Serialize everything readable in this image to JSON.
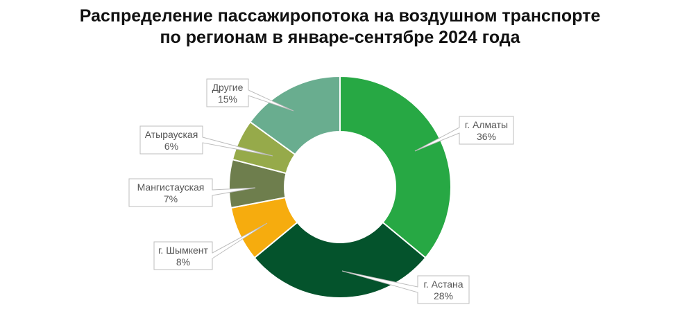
{
  "chart_data": {
    "type": "pie",
    "variant": "donut",
    "title_lines": [
      "Распределение пассажиропотока на воздушном транспорте",
      "по регионам в январе-сентябре 2024 года"
    ],
    "slices": [
      {
        "label": "г. Алматы",
        "value": 36,
        "value_label": "36%",
        "color": "#27a844"
      },
      {
        "label": "г. Астана",
        "value": 28,
        "value_label": "28%",
        "color": "#04532c"
      },
      {
        "label": "г. Шымкент",
        "value": 8,
        "value_label": "8%",
        "color": "#f6ac0e"
      },
      {
        "label": "Мангистауская",
        "value": 7,
        "value_label": "7%",
        "color": "#6e7e4d"
      },
      {
        "label": "Атырауская",
        "value": 6,
        "value_label": "6%",
        "color": "#96aa4a"
      },
      {
        "label": "Другие",
        "value": 15,
        "value_label": "15%",
        "color": "#69ad8f"
      }
    ],
    "start": "12 o'clock",
    "direction": "clockwise",
    "legend": "none (callout labels)"
  }
}
